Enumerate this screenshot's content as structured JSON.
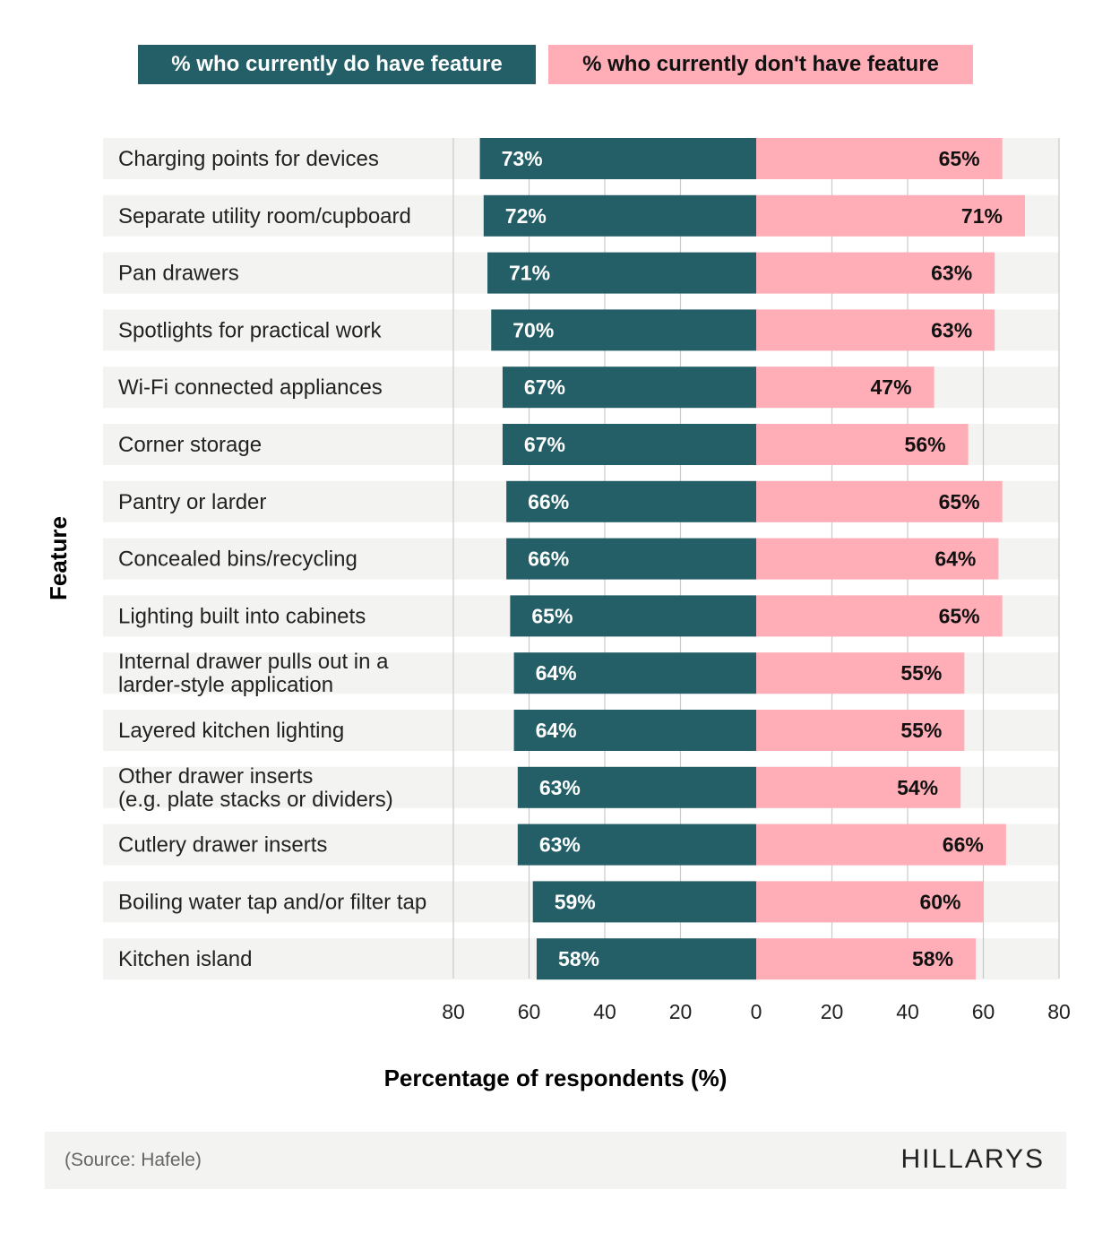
{
  "chart_data": {
    "type": "bar",
    "orientation": "horizontal-diverging",
    "legend": [
      "% who currently do have feature",
      "% who currently don't have feature"
    ],
    "legend_placement": "top",
    "categories": [
      "Charging points for devices",
      "Separate utility room/cupboard",
      "Pan drawers",
      "Spotlights for practical work",
      "Wi-Fi connected appliances",
      "Corner storage",
      "Pantry or larder",
      "Concealed bins/recycling",
      "Lighting built into cabinets",
      "Internal drawer pulls out in a\nlarder-style application",
      "Layered kitchen lighting",
      "Other drawer inserts\n(e.g. plate stacks or dividers)",
      "Cutlery drawer inserts",
      "Boiling water tap and/or filter tap",
      "Kitchen island"
    ],
    "series": [
      {
        "name": "% who currently do have feature",
        "color": "#245f67",
        "values": [
          73,
          72,
          71,
          70,
          67,
          67,
          66,
          66,
          65,
          64,
          64,
          63,
          63,
          59,
          58
        ]
      },
      {
        "name": "% who currently don't have feature",
        "color": "#ffadb6",
        "values": [
          65,
          71,
          63,
          63,
          47,
          56,
          65,
          64,
          65,
          55,
          55,
          54,
          66,
          60,
          58
        ]
      }
    ],
    "xlabel": "Percentage of respondents (%)",
    "ylabel": "Feature",
    "xlim": [
      -80,
      80
    ],
    "xticks": [
      "80",
      "60",
      "40",
      "20",
      "0",
      "20",
      "40",
      "60",
      "80"
    ],
    "grid": true
  },
  "footer": {
    "source": "(Source: Hafele)",
    "logo": "HILLARYS"
  }
}
